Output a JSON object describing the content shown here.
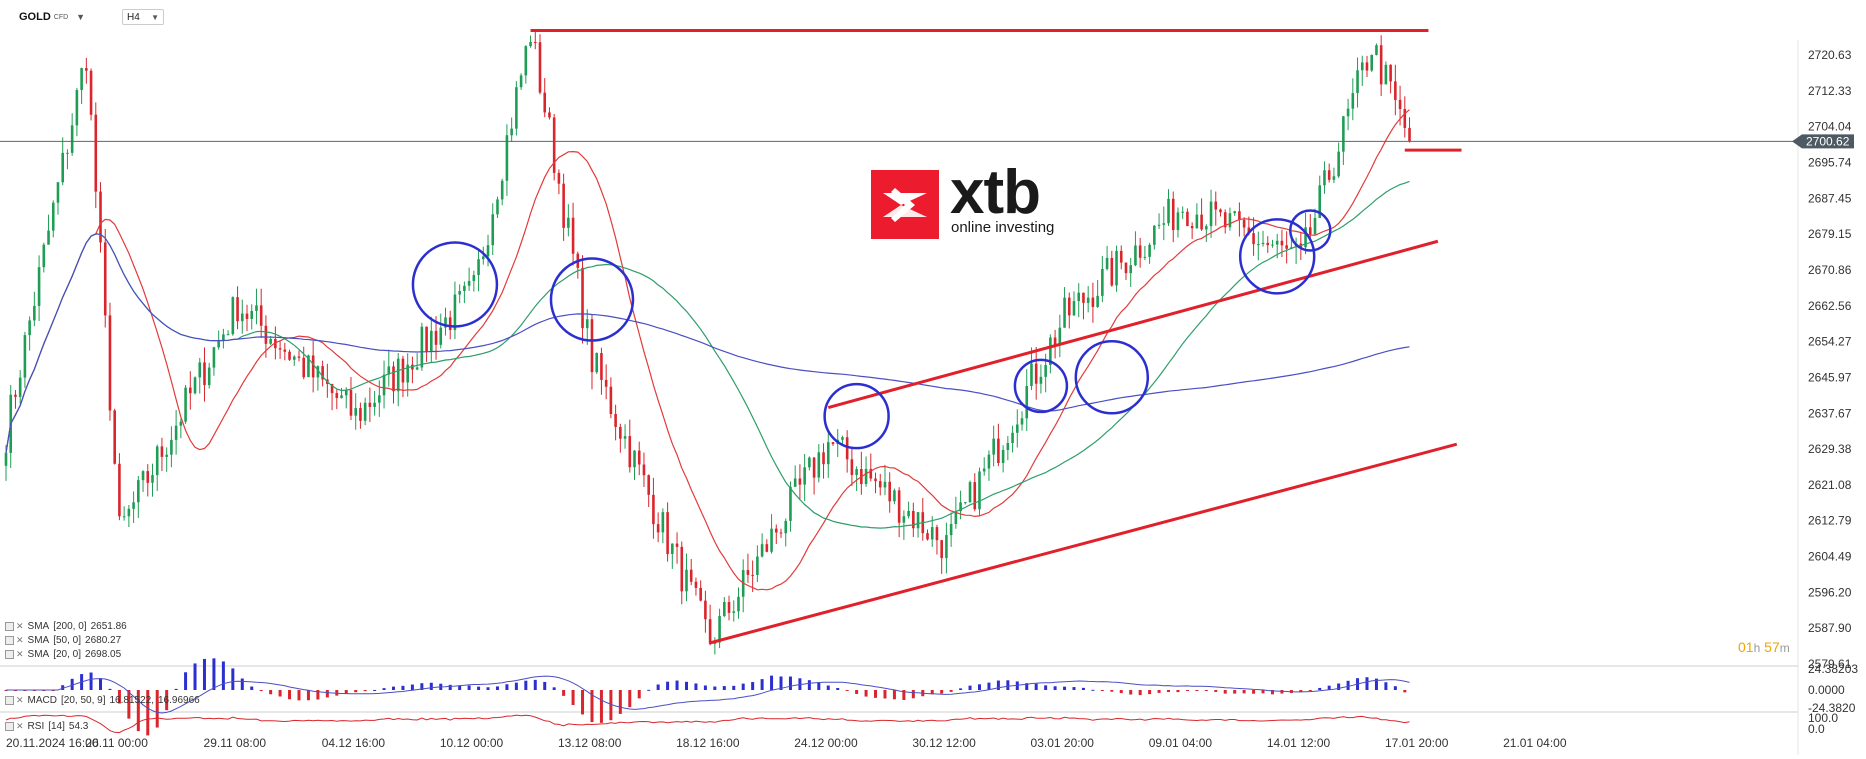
{
  "header": {
    "symbol": "GOLD",
    "symbol_sub": "CFD",
    "timeframe": "H4"
  },
  "indicators": {
    "sma200": {
      "label": "SMA",
      "params": "[200,  0]",
      "value": "2651.86",
      "color": "#4a4fc4"
    },
    "sma50": {
      "label": "SMA",
      "params": "[50,  0]",
      "value": "2680.27",
      "color": "#2e9e6a"
    },
    "sma20": {
      "label": "SMA",
      "params": "[20,  0]",
      "value": "2698.05",
      "color": "#e23b3b"
    },
    "macd": {
      "label": "MACD",
      "params": "[20, 50, 9]",
      "value1": "16.81522,",
      "value2": "16.96966"
    },
    "rsi": {
      "label": "RSI",
      "params": "[14]",
      "value": "54.3"
    }
  },
  "logo": {
    "brand": "xtb",
    "tagline": "online investing"
  },
  "timer": {
    "hours": "01",
    "h_unit": "h",
    "minutes": "57",
    "m_unit": "m"
  },
  "chart_data": {
    "type": "candlestick",
    "instrument": "GOLD",
    "timeframe": "H4",
    "y_ticks": [
      "2720.63",
      "2712.33",
      "2704.04",
      "2695.74",
      "2687.45",
      "2679.15",
      "2670.86",
      "2662.56",
      "2654.27",
      "2645.97",
      "2637.67",
      "2629.38",
      "2621.08",
      "2612.79",
      "2604.49",
      "2596.20",
      "2587.90",
      "2579.61"
    ],
    "y_range": [
      2579.61,
      2720.63
    ],
    "current_price": "2700.62",
    "x_ticks": [
      "20.11.2024  16:00",
      "26.11  00:00",
      "29.11  08:00",
      "04.12  16:00",
      "10.12  00:00",
      "13.12  08:00",
      "18.12  16:00",
      "24.12  00:00",
      "30.12  12:00",
      "03.01  20:00",
      "09.01  04:00",
      "14.01  12:00",
      "17.01  20:00",
      "21.01  04:00"
    ],
    "macd_ticks": [
      "24.38203",
      "0.0000",
      "-24.3820"
    ],
    "rsi_ticks": [
      "100.0",
      "0.0"
    ],
    "key_points": [
      {
        "x": "20.11.2024 16:00",
        "y": 2633
      },
      {
        "x": "22.11 12:00",
        "y": 2721
      },
      {
        "x": "26.11 00:00",
        "y": 2610
      },
      {
        "x": "29.11 08:00",
        "y": 2663
      },
      {
        "x": "04.12 16:00",
        "y": 2637
      },
      {
        "x": "10.12 00:00",
        "y": 2666
      },
      {
        "x": "11.12 20:00",
        "y": 2726
      },
      {
        "x": "13.12 08:00",
        "y": 2650
      },
      {
        "x": "18.12 16:00",
        "y": 2585
      },
      {
        "x": "24.12 00:00",
        "y": 2631
      },
      {
        "x": "30.12 12:00",
        "y": 2607
      },
      {
        "x": "03.01 20:00",
        "y": 2660
      },
      {
        "x": "09.01 04:00",
        "y": 2686
      },
      {
        "x": "14.01 12:00",
        "y": 2673
      },
      {
        "x": "16.01 12:00",
        "y": 2723
      },
      {
        "x": "17.01 04:00",
        "y": 2700.62
      }
    ]
  }
}
